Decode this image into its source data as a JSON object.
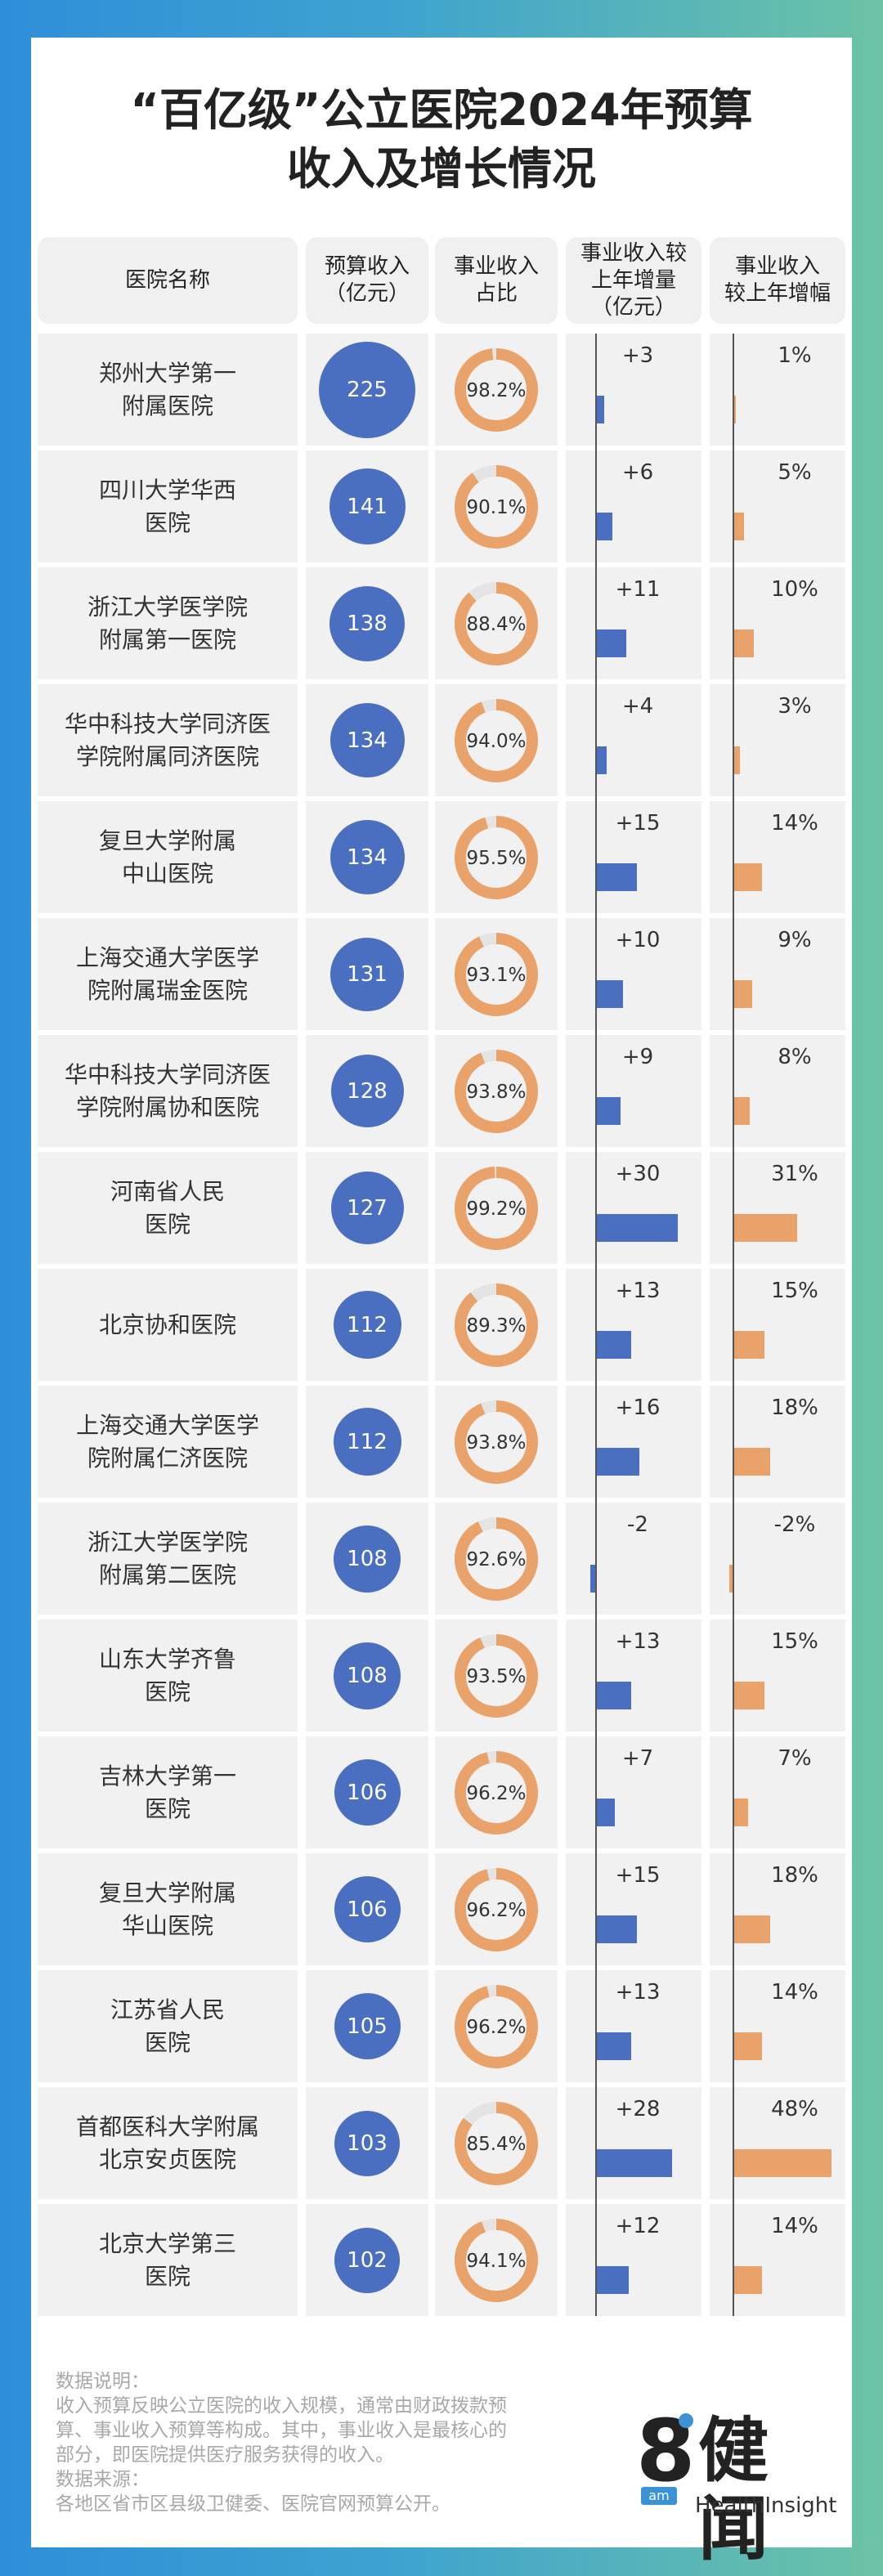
{
  "title_lines": [
    "“百亿级”公立医院2024年预算",
    "收入及增长情况"
  ],
  "headers": {
    "name": "医院名称",
    "budget": "预算收入\n（亿元）",
    "share": "事业收入\n占比",
    "delta": "事业收入较\n上年增量\n（亿元）",
    "growth": "事业收入\n较上年增幅"
  },
  "chart_data": {
    "type": "table",
    "columns": [
      "医院名称",
      "预算收入（亿元）",
      "事业收入占比",
      "事业收入较上年增量（亿元）",
      "事业收入较上年增幅"
    ],
    "rows": [
      {
        "name": "郑州大学第一\n附属医院",
        "budget": "225",
        "share_label": "98.2%",
        "share": 98.2,
        "delta_label": "+3",
        "delta": 3,
        "growth_label": "1%",
        "growth": 1
      },
      {
        "name": "四川大学华西\n医院",
        "budget": "141",
        "share_label": "90.1%",
        "share": 90.1,
        "delta_label": "+6",
        "delta": 6,
        "growth_label": "5%",
        "growth": 5
      },
      {
        "name": "浙江大学医学院\n附属第一医院",
        "budget": "138",
        "share_label": "88.4%",
        "share": 88.4,
        "delta_label": "+11",
        "delta": 11,
        "growth_label": "10%",
        "growth": 10
      },
      {
        "name": "华中科技大学同济医\n学院附属同济医院",
        "budget": "134",
        "share_label": "94.0%",
        "share": 94.0,
        "delta_label": "+4",
        "delta": 4,
        "growth_label": "3%",
        "growth": 3
      },
      {
        "name": "复旦大学附属\n中山医院",
        "budget": "134",
        "share_label": "95.5%",
        "share": 95.5,
        "delta_label": "+15",
        "delta": 15,
        "growth_label": "14%",
        "growth": 14
      },
      {
        "name": "上海交通大学医学\n院附属瑞金医院",
        "budget": "131",
        "share_label": "93.1%",
        "share": 93.1,
        "delta_label": "+10",
        "delta": 10,
        "growth_label": "9%",
        "growth": 9
      },
      {
        "name": "华中科技大学同济医\n学院附属协和医院",
        "budget": "128",
        "share_label": "93.8%",
        "share": 93.8,
        "delta_label": "+9",
        "delta": 9,
        "growth_label": "8%",
        "growth": 8
      },
      {
        "name": "河南省人民\n医院",
        "budget": "127",
        "share_label": "99.2%",
        "share": 99.2,
        "delta_label": "+30",
        "delta": 30,
        "growth_label": "31%",
        "growth": 31
      },
      {
        "name": "北京协和医院",
        "budget": "112",
        "share_label": "89.3%",
        "share": 89.3,
        "delta_label": "+13",
        "delta": 13,
        "growth_label": "15%",
        "growth": 15
      },
      {
        "name": "上海交通大学医学\n院附属仁济医院",
        "budget": "112",
        "share_label": "93.8%",
        "share": 93.8,
        "delta_label": "+16",
        "delta": 16,
        "growth_label": "18%",
        "growth": 18
      },
      {
        "name": "浙江大学医学院\n附属第二医院",
        "budget": "108",
        "share_label": "92.6%",
        "share": 92.6,
        "delta_label": "-2",
        "delta": -2,
        "growth_label": "-2%",
        "growth": -2
      },
      {
        "name": "山东大学齐鲁\n医院",
        "budget": "108",
        "share_label": "93.5%",
        "share": 93.5,
        "delta_label": "+13",
        "delta": 13,
        "growth_label": "15%",
        "growth": 15
      },
      {
        "name": "吉林大学第一\n医院",
        "budget": "106",
        "share_label": "96.2%",
        "share": 96.2,
        "delta_label": "+7",
        "delta": 7,
        "growth_label": "7%",
        "growth": 7
      },
      {
        "name": "复旦大学附属\n华山医院",
        "budget": "106",
        "share_label": "96.2%",
        "share": 96.2,
        "delta_label": "+15",
        "delta": 15,
        "growth_label": "18%",
        "growth": 18
      },
      {
        "name": "江苏省人民\n医院",
        "budget": "105",
        "share_label": "96.2%",
        "share": 96.2,
        "delta_label": "+13",
        "delta": 13,
        "growth_label": "14%",
        "growth": 14
      },
      {
        "name": "首都医科大学附属\n北京安贞医院",
        "budget": "103",
        "share_label": "85.4%",
        "share": 85.4,
        "delta_label": "+28",
        "delta": 28,
        "growth_label": "48%",
        "growth": 48
      },
      {
        "name": "北京大学第三\n医院",
        "budget": "102",
        "share_label": "94.1%",
        "share": 94.1,
        "delta_label": "+12",
        "delta": 12,
        "growth_label": "14%",
        "growth": 14
      }
    ],
    "colors": {
      "budget_bubble": "#4a6fc1",
      "share_ring": "#e9a36a",
      "share_ring_bg": "#e4e4e4",
      "delta_bar": "#4a6fc1",
      "growth_bar": "#e9a36a"
    }
  },
  "footer": {
    "note_label": "数据说明：",
    "note_text": "收入预算反映公立医院的收入规模，通常由财政拨款预\n算、事业收入预算等构成。其中，事业收入是最核心的\n部分，即医院提供医疗服务获得的收入。",
    "source_label": "数据来源：",
    "source_text": "各地区省市区县级卫健委、医院官网预算公开。"
  },
  "logo": {
    "mark": "8",
    "am": "am",
    "cn": "健闻",
    "en": "HealthInsight"
  }
}
